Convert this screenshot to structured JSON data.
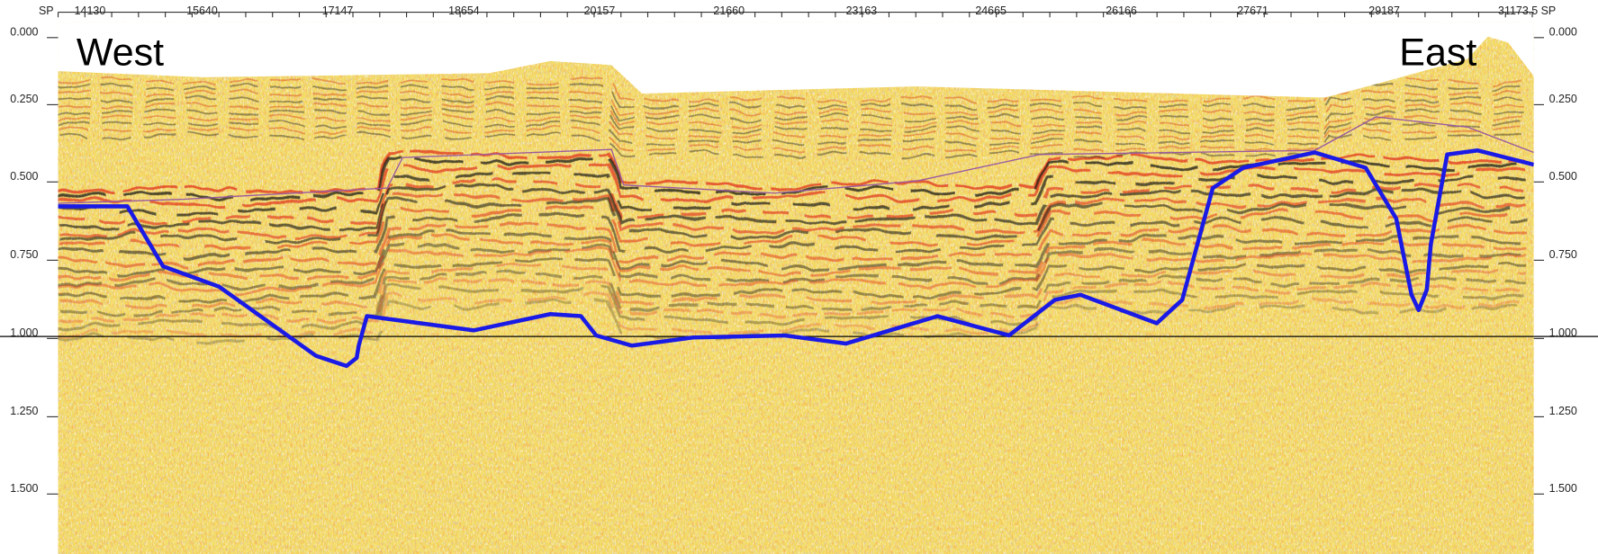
{
  "top_axis": {
    "start_label": "SP",
    "labels": [
      "14130",
      "15640",
      "17147",
      "18654",
      "20157",
      "21660",
      "23163",
      "24665",
      "26166",
      "27671",
      "29187",
      "31173.5"
    ],
    "end_label": "SP"
  },
  "left_axis": {
    "labels": [
      "0.000",
      "0.250",
      "0.500",
      "0.750",
      "1.000",
      "1.250",
      "1.500"
    ]
  },
  "right_axis": {
    "labels": [
      "0.000",
      "0.250",
      "0.500",
      "0.750",
      "1.000",
      "1.250",
      "1.500"
    ]
  },
  "annotations": {
    "west": "West",
    "east": "East"
  }
}
